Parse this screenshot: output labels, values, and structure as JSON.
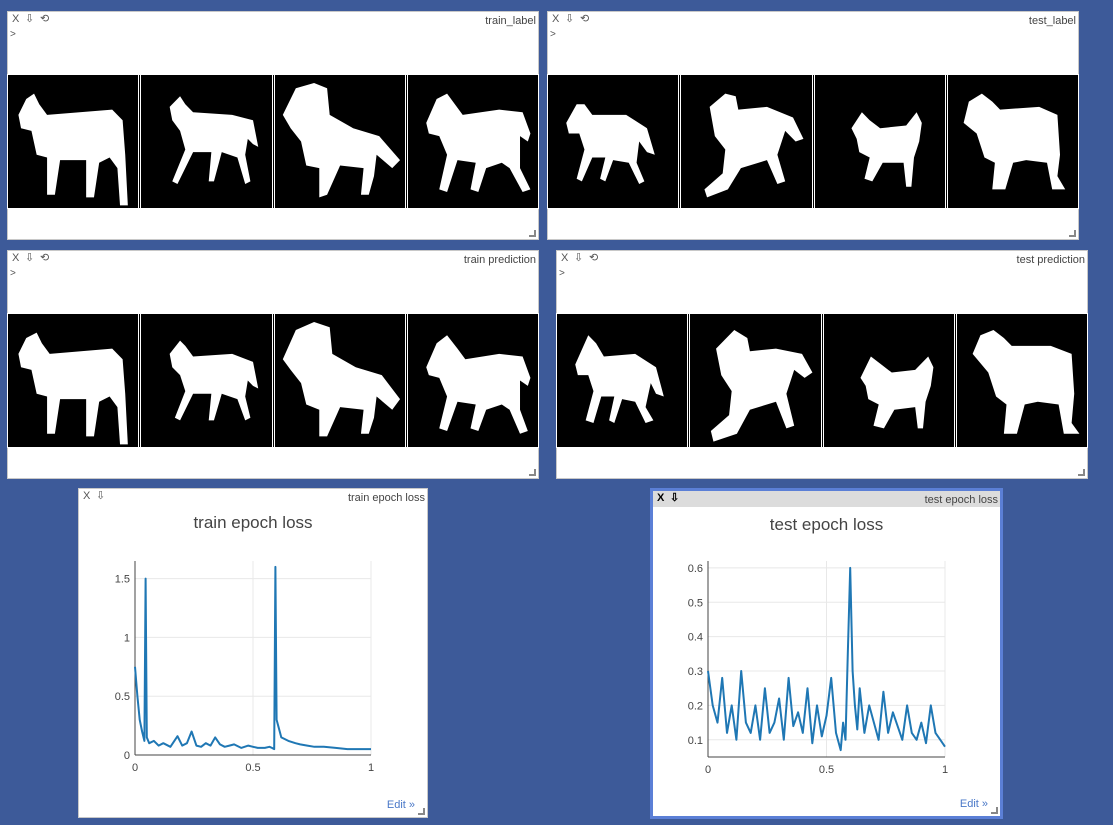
{
  "panes": {
    "train_label": {
      "title": "train_label",
      "prompt": ">",
      "close": "X",
      "download": "⇩",
      "reset": "⟲"
    },
    "test_label": {
      "title": "test_label",
      "prompt": ">",
      "close": "X",
      "download": "⇩",
      "reset": "⟲"
    },
    "train_prediction": {
      "title": "train prediction",
      "prompt": ">",
      "close": "X",
      "download": "⇩",
      "reset": "⟲"
    },
    "test_prediction": {
      "title": "test prediction",
      "prompt": ">",
      "close": "X",
      "download": "⇩",
      "reset": "⟲"
    },
    "train_loss": {
      "title": "train epoch loss",
      "close": "X",
      "download": "⇩",
      "edit": "Edit »"
    },
    "test_loss": {
      "title": "test epoch loss",
      "close": "X",
      "download": "⇩",
      "edit": "Edit »"
    }
  },
  "colors": {
    "background": "#3d5a99",
    "line": "#1f77b4",
    "focus_border": "#5b7fd6"
  },
  "chart_data": [
    {
      "type": "line",
      "title": "train epoch loss",
      "xlim": [
        0,
        1
      ],
      "ylim": [
        0,
        1.65
      ],
      "xticks": [
        "0",
        "0.5",
        "1"
      ],
      "yticks": [
        "0",
        "0.5",
        "1",
        "1.5"
      ],
      "yticks_values": [
        0,
        0.5,
        1,
        1.5
      ],
      "xticks_values": [
        0,
        0.5,
        1
      ],
      "grid": true,
      "series": [
        {
          "x": [
            0,
            0.01,
            0.02,
            0.03,
            0.04,
            0.045,
            0.05,
            0.06,
            0.08,
            0.1,
            0.12,
            0.15,
            0.18,
            0.2,
            0.22,
            0.24,
            0.26,
            0.28,
            0.3,
            0.32,
            0.34,
            0.36,
            0.38,
            0.4,
            0.42,
            0.45,
            0.48,
            0.5,
            0.52,
            0.55,
            0.57,
            0.58,
            0.59,
            0.595,
            0.6,
            0.62,
            0.65,
            0.68,
            0.7,
            0.73,
            0.76,
            0.8,
            0.85,
            0.9,
            0.95,
            1
          ],
          "y": [
            0.75,
            0.5,
            0.3,
            0.2,
            0.12,
            1.5,
            0.15,
            0.1,
            0.12,
            0.08,
            0.1,
            0.07,
            0.16,
            0.08,
            0.1,
            0.2,
            0.08,
            0.07,
            0.1,
            0.08,
            0.15,
            0.09,
            0.07,
            0.08,
            0.09,
            0.06,
            0.08,
            0.07,
            0.06,
            0.06,
            0.07,
            0.06,
            0.05,
            1.6,
            0.3,
            0.15,
            0.12,
            0.1,
            0.09,
            0.08,
            0.07,
            0.07,
            0.06,
            0.05,
            0.05,
            0.05
          ]
        }
      ]
    },
    {
      "type": "line",
      "title": "test epoch loss",
      "xlim": [
        0,
        1
      ],
      "ylim": [
        0.05,
        0.62
      ],
      "xticks": [
        "0",
        "0.5",
        "1"
      ],
      "yticks": [
        "0.1",
        "0.2",
        "0.3",
        "0.4",
        "0.5",
        "0.6"
      ],
      "yticks_values": [
        0.1,
        0.2,
        0.3,
        0.4,
        0.5,
        0.6
      ],
      "xticks_values": [
        0,
        0.5,
        1
      ],
      "grid": true,
      "series": [
        {
          "x": [
            0,
            0.02,
            0.04,
            0.06,
            0.08,
            0.1,
            0.12,
            0.14,
            0.16,
            0.18,
            0.2,
            0.22,
            0.24,
            0.26,
            0.28,
            0.3,
            0.32,
            0.34,
            0.36,
            0.38,
            0.4,
            0.42,
            0.44,
            0.46,
            0.48,
            0.5,
            0.52,
            0.54,
            0.56,
            0.57,
            0.58,
            0.59,
            0.6,
            0.61,
            0.62,
            0.63,
            0.64,
            0.66,
            0.68,
            0.7,
            0.72,
            0.74,
            0.76,
            0.78,
            0.8,
            0.82,
            0.84,
            0.86,
            0.88,
            0.9,
            0.92,
            0.94,
            0.96,
            0.98,
            1
          ],
          "y": [
            0.3,
            0.2,
            0.15,
            0.28,
            0.12,
            0.2,
            0.1,
            0.3,
            0.15,
            0.12,
            0.2,
            0.1,
            0.25,
            0.12,
            0.15,
            0.22,
            0.1,
            0.28,
            0.14,
            0.18,
            0.12,
            0.25,
            0.09,
            0.2,
            0.11,
            0.17,
            0.28,
            0.12,
            0.07,
            0.15,
            0.1,
            0.35,
            0.6,
            0.3,
            0.2,
            0.13,
            0.25,
            0.12,
            0.2,
            0.15,
            0.1,
            0.24,
            0.12,
            0.18,
            0.14,
            0.1,
            0.2,
            0.12,
            0.1,
            0.15,
            0.09,
            0.2,
            0.12,
            0.1,
            0.08
          ]
        }
      ]
    }
  ]
}
